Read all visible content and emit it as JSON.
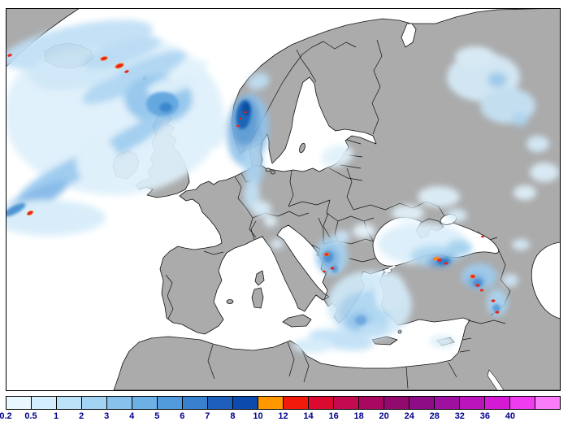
{
  "map": {
    "depicts": "Precipitation analysis over Europe and the North Atlantic",
    "sea_color": "#ffffff",
    "land_color": "#ababab",
    "coast_border_color": "#111111",
    "frame_color": "#000000"
  },
  "legend": {
    "tick_labels": [
      "0.2",
      "0.5",
      "1",
      "2",
      "3",
      "4",
      "5",
      "6",
      "7",
      "8",
      "10",
      "12",
      "14",
      "16",
      "18",
      "20",
      "24",
      "28",
      "32",
      "36",
      "40"
    ],
    "segment_colors": [
      "#E9F7FE",
      "#D3EEFC",
      "#BCE2F8",
      "#A2D3F3",
      "#87C2ED",
      "#6CB0E5",
      "#519ADB",
      "#3781CF",
      "#1F5FBC",
      "#0D4AAE",
      "#FF9800",
      "#F21A0A",
      "#DC0A30",
      "#C40A50",
      "#AA0860",
      "#920A6E",
      "#8E0C86",
      "#A010A0",
      "#BC14BC",
      "#D41AD4",
      "#EE3CEE",
      "#F97CF9"
    ],
    "label_color": "#00008B"
  },
  "precipitation": {
    "light_color": "#d8ecf8",
    "moderate_color": "#8cc4ea",
    "heavy_color": "#2070c0",
    "extreme_spot_color": "#e8241c",
    "orange_spot_color": "#f58231",
    "areas_depicted": [
      "North Atlantic frontal bands and cyclone swirl",
      "Vicinity of Iceland with embedded heavy cells",
      "Southern Norway, Skagerrak and Denmark",
      "Finland and northwest Russia",
      "Adriatic coast and Balkans with heavy cells",
      "Aegean Sea, Greece and central Mediterranean",
      "Black Sea band with heavy cells",
      "Northeastern Turkey, Caucasus and eastern Anatolia"
    ]
  }
}
